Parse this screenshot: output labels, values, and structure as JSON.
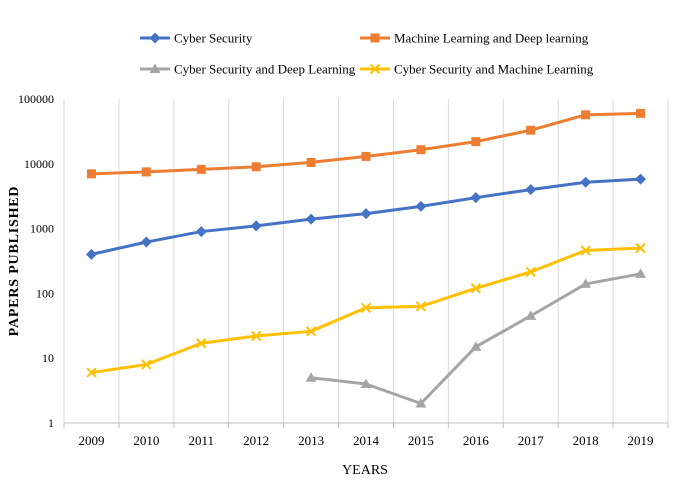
{
  "chart_data": {
    "type": "line",
    "yscale": "log",
    "ylim": [
      1,
      100000
    ],
    "yticks": [
      1,
      10,
      100,
      1000,
      10000,
      100000
    ],
    "ytick_labels": [
      "1",
      "10",
      "100",
      "1000",
      "10000",
      "100000"
    ],
    "x": [
      2009,
      2010,
      2011,
      2012,
      2013,
      2014,
      2015,
      2016,
      2017,
      2018,
      2019
    ],
    "x_labels": [
      "2009",
      "2010",
      "2011",
      "2012",
      "2013",
      "2014",
      "2015",
      "2016",
      "2017",
      "2018",
      "2019"
    ],
    "xlabel": "YEARS",
    "ylabel": "PAPERS PUBLISHED",
    "grid": "vertical",
    "legend_position": "top",
    "series": [
      {
        "name": "Cyber Security",
        "color": "#4472C4",
        "marker": "diamond",
        "values": [
          400,
          620,
          900,
          1100,
          1400,
          1700,
          2200,
          3000,
          4000,
          5200,
          5800
        ]
      },
      {
        "name": "Machine Learning and Deep learning",
        "color": "#ED7D31",
        "marker": "square",
        "values": [
          7000,
          7500,
          8200,
          9000,
          10500,
          13000,
          16500,
          22000,
          33000,
          57000,
          60000
        ]
      },
      {
        "name": "Cyber Security and Deep Learning",
        "color": "#A5A5A5",
        "marker": "triangle",
        "values": [
          null,
          null,
          null,
          null,
          5,
          4,
          2,
          15,
          45,
          140,
          200
        ]
      },
      {
        "name": "Cyber Security and Machine Learning",
        "color": "#FFC000",
        "marker": "x",
        "values": [
          6,
          8,
          17,
          22,
          26,
          60,
          63,
          120,
          215,
          460,
          500
        ]
      }
    ]
  }
}
